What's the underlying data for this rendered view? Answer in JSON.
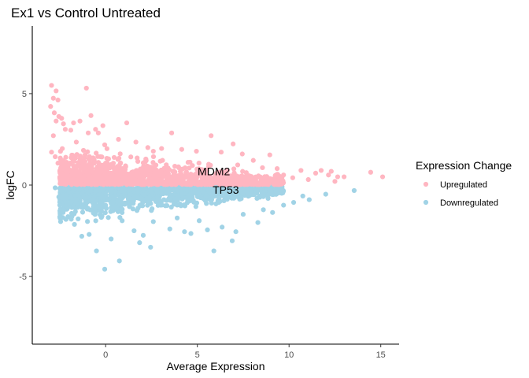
{
  "chart_data": {
    "type": "scatter",
    "title": "Ex1 vs Control Untreated",
    "xlabel": "Average Expression",
    "ylabel": "logFC",
    "xlim": [
      -4,
      16
    ],
    "ylim": [
      -8.7,
      8.7
    ],
    "xticks": [
      0,
      5,
      10,
      15
    ],
    "yticks": [
      -5,
      0,
      5
    ],
    "grid": false,
    "legend": {
      "title": "Expression Change",
      "position": "right"
    },
    "series": [
      {
        "name": "Upregulated",
        "color": "#FFB6C1",
        "points": [
          [
            -2.95,
            5.45
          ],
          [
            -2.7,
            5.15
          ],
          [
            -2.85,
            4.75
          ],
          [
            -2.6,
            4.65
          ],
          [
            -3.0,
            4.3
          ],
          [
            -2.8,
            3.95
          ],
          [
            -2.55,
            3.75
          ],
          [
            -2.4,
            3.65
          ],
          [
            -2.7,
            3.5
          ],
          [
            -2.3,
            3.35
          ],
          [
            -1.05,
            5.3
          ],
          [
            -0.8,
            3.8
          ],
          [
            -1.4,
            3.5
          ],
          [
            -1.75,
            3.4
          ],
          [
            -0.15,
            3.25
          ],
          [
            -0.55,
            3.05
          ],
          [
            1.15,
            3.4
          ],
          [
            -0.95,
            2.85
          ],
          [
            -2.2,
            3.05
          ],
          [
            -1.9,
            3.0
          ],
          [
            -0.4,
            2.85
          ],
          [
            0.7,
            2.5
          ],
          [
            1.65,
            2.35
          ],
          [
            3.6,
            2.85
          ],
          [
            5.75,
            2.7
          ],
          [
            6.95,
            2.25
          ],
          [
            3.05,
            2.0
          ],
          [
            4.15,
            1.95
          ],
          [
            2.3,
            2.05
          ],
          [
            2.6,
            1.85
          ],
          [
            4.95,
            1.85
          ],
          [
            6.3,
            1.8
          ],
          [
            7.45,
            1.7
          ],
          [
            8.05,
            1.35
          ],
          [
            8.95,
            1.65
          ],
          [
            7.2,
            1.1
          ],
          [
            9.35,
            0.9
          ],
          [
            10.65,
            0.8
          ],
          [
            11.75,
            0.8
          ],
          [
            12.3,
            0.75
          ],
          [
            11.45,
            0.65
          ],
          [
            12.15,
            0.55
          ],
          [
            12.65,
            0.45
          ],
          [
            13.0,
            0.45
          ],
          [
            14.45,
            0.7
          ],
          [
            15.1,
            0.45
          ],
          [
            12.5,
            0.2
          ],
          [
            -2.85,
            2.7
          ],
          [
            -2.95,
            1.8
          ],
          [
            -2.6,
            1.2
          ],
          [
            -2.3,
            0.9
          ],
          [
            -2.75,
            1.55
          ],
          [
            -1.6,
            2.35
          ],
          [
            -0.05,
            2.2
          ],
          [
            3.1,
            1.35
          ],
          [
            4.6,
            1.25
          ],
          [
            8.55,
            0.95
          ],
          [
            9.7,
            0.55
          ],
          [
            10.2,
            0.4
          ],
          [
            11.05,
            0.3
          ],
          [
            5.2,
            0.85
          ],
          [
            6.1,
            0.7
          ]
        ]
      },
      {
        "name": "Downregulated",
        "color": "#A1D3E6",
        "points": [
          [
            -0.05,
            -4.6
          ],
          [
            0.75,
            -4.15
          ],
          [
            -0.5,
            -3.6
          ],
          [
            1.85,
            -3.15
          ],
          [
            2.45,
            -3.4
          ],
          [
            5.9,
            -3.6
          ],
          [
            6.9,
            -3.05
          ],
          [
            -1.3,
            -2.8
          ],
          [
            -0.9,
            -2.7
          ],
          [
            0.3,
            -2.95
          ],
          [
            1.55,
            -2.5
          ],
          [
            2.05,
            -2.75
          ],
          [
            3.5,
            -2.4
          ],
          [
            4.3,
            -2.55
          ],
          [
            4.65,
            -2.65
          ],
          [
            5.55,
            -2.45
          ],
          [
            6.35,
            -2.3
          ],
          [
            7.1,
            -2.55
          ],
          [
            8.3,
            -2.05
          ],
          [
            9.1,
            -1.5
          ],
          [
            -1.7,
            -2.15
          ],
          [
            -1.5,
            -1.85
          ],
          [
            -2.0,
            -1.2
          ],
          [
            -2.5,
            -1.1
          ],
          [
            -2.55,
            -0.65
          ],
          [
            -2.75,
            -0.15
          ],
          [
            9.7,
            -1.1
          ],
          [
            10.25,
            -0.95
          ],
          [
            11.1,
            -0.8
          ],
          [
            12.0,
            -0.5
          ],
          [
            13.55,
            -0.3
          ],
          [
            10.75,
            -0.6
          ],
          [
            9.6,
            -0.45
          ],
          [
            8.6,
            -1.35
          ],
          [
            7.5,
            -1.6
          ],
          [
            -0.2,
            -1.7
          ],
          [
            0.9,
            -1.95
          ],
          [
            2.6,
            -2.0
          ],
          [
            3.9,
            -1.8
          ],
          [
            5.1,
            -1.95
          ]
        ]
      }
    ],
    "annotations": [
      {
        "text": "MDM2",
        "x": 5.9,
        "y": 0.75
      },
      {
        "text": "TP53",
        "x": 6.55,
        "y": -0.25
      }
    ]
  }
}
